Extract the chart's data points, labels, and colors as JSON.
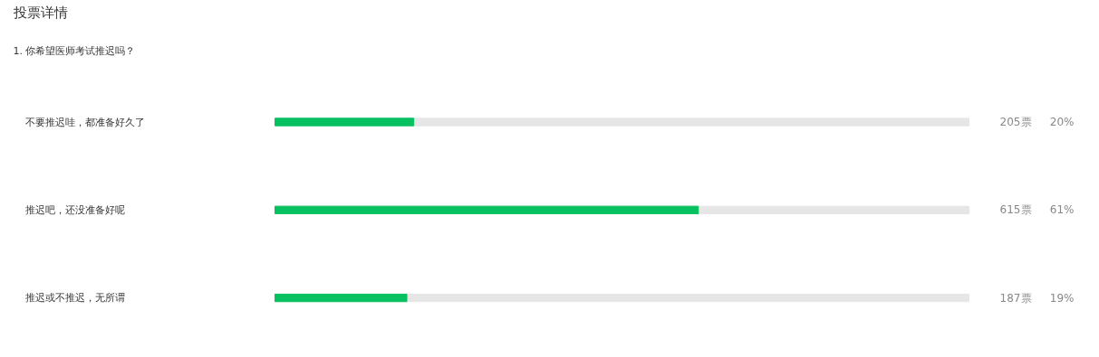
{
  "chart_data": {
    "type": "bar",
    "orientation": "horizontal",
    "title": "投票详情",
    "subtitle": "1. 你希望医师考试推迟吗？",
    "categories": [
      "不要推迟哇，都准备好久了",
      "推迟吧，还没准备好呢",
      "推迟或不推迟，无所谓"
    ],
    "values": [
      20,
      61,
      19
    ],
    "color": "#07c160",
    "value_labels": [
      "20%",
      "61%",
      "19%"
    ],
    "annotations": [
      "205票",
      "615票",
      "187票"
    ],
    "grid": false,
    "tick_labels": false
  }
}
